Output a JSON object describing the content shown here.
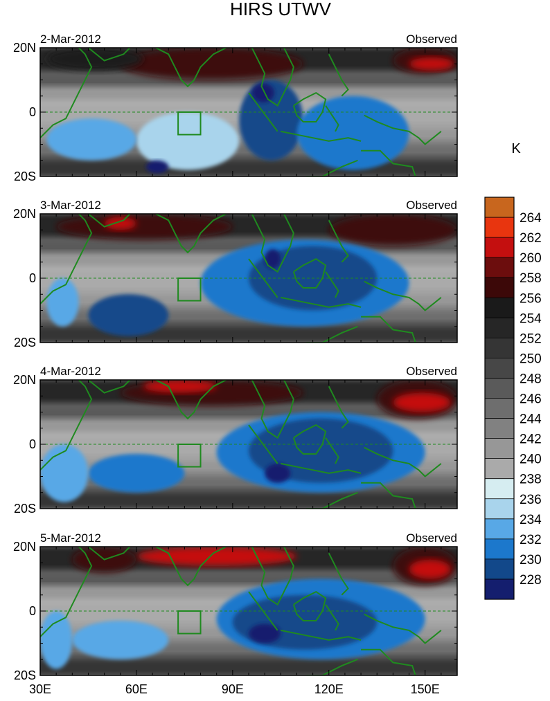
{
  "chart_data": {
    "type": "heatmap",
    "title": "HIRS UTWV",
    "units": "K",
    "x_range": [
      30,
      160
    ],
    "y_range": [
      -20,
      20
    ],
    "x_ticks": [
      {
        "value": 30,
        "label": "30E"
      },
      {
        "value": 60,
        "label": "60E"
      },
      {
        "value": 90,
        "label": "90E"
      },
      {
        "value": 120,
        "label": "120E"
      },
      {
        "value": 150,
        "label": "150E"
      }
    ],
    "y_ticks": [
      {
        "value": 20,
        "label": "20N"
      },
      {
        "value": 0,
        "label": "0"
      },
      {
        "value": -20,
        "label": "20S"
      }
    ],
    "colorbar": {
      "levels": [
        "228",
        "230",
        "232",
        "234",
        "236",
        "238",
        "240",
        "242",
        "244",
        "246",
        "248",
        "250",
        "252",
        "254",
        "256",
        "258",
        "260",
        "262",
        "264"
      ],
      "colors": [
        "#141e6e",
        "#12488a",
        "#1c78cc",
        "#58a8e6",
        "#a9d4ec",
        "#d6edf1",
        "#aaaaaa",
        "#979797",
        "#818181",
        "#6e6e6e",
        "#5a5a5a",
        "#474747",
        "#353535",
        "#262626",
        "#1a1a1a",
        "#3c0808",
        "#6c0d0d",
        "#c40f0f",
        "#e8350f",
        "#c8661e"
      ]
    },
    "box_region": {
      "lon": [
        73,
        80
      ],
      "lat": [
        -7,
        0
      ]
    },
    "panels": [
      {
        "date": "2-Mar-2012",
        "label": "Observed",
        "dry_regions": [
          {
            "lon": [
              55,
              112
            ],
            "lat": [
              10,
              20
            ],
            "level": 258
          },
          {
            "lon": [
              32,
              62
            ],
            "lat": [
              13,
              20
            ],
            "level": 256
          },
          {
            "lon": [
              140,
              160
            ],
            "lat": [
              12,
              20
            ],
            "level": 258
          },
          {
            "lon": [
              145,
              159
            ],
            "lat": [
              13,
              17
            ],
            "level": 262
          }
        ],
        "moist_regions": [
          {
            "lon": [
              60,
              92
            ],
            "lat": [
              -18,
              0
            ],
            "level": 236
          },
          {
            "lon": [
              92,
              112
            ],
            "lat": [
              -15,
              10
            ],
            "level": 230
          },
          {
            "lon": [
              96,
              103
            ],
            "lat": [
              3,
              9
            ],
            "level": 228
          },
          {
            "lon": [
              110,
              145
            ],
            "lat": [
              -18,
              5
            ],
            "level": 232
          },
          {
            "lon": [
              32,
              60
            ],
            "lat": [
              -15,
              -2
            ],
            "level": 234
          },
          {
            "lon": [
              63,
              70
            ],
            "lat": [
              -19,
              -15
            ],
            "level": 228
          }
        ]
      },
      {
        "date": "3-Mar-2012",
        "label": "Observed",
        "dry_regions": [
          {
            "lon": [
              35,
              90
            ],
            "lat": [
              12,
              20
            ],
            "level": 258
          },
          {
            "lon": [
              50,
              60
            ],
            "lat": [
              15,
              19
            ],
            "level": 262
          },
          {
            "lon": [
              120,
              160
            ],
            "lat": [
              10,
              20
            ],
            "level": 258
          }
        ],
        "moist_regions": [
          {
            "lon": [
              80,
              145
            ],
            "lat": [
              -15,
              12
            ],
            "level": 232
          },
          {
            "lon": [
              95,
              135
            ],
            "lat": [
              -10,
              10
            ],
            "level": 230
          },
          {
            "lon": [
              45,
              70
            ],
            "lat": [
              -18,
              -5
            ],
            "level": 230
          },
          {
            "lon": [
              100,
              105
            ],
            "lat": [
              3,
              9
            ],
            "level": 228
          },
          {
            "lon": [
              32,
              42
            ],
            "lat": [
              -15,
              0
            ],
            "level": 234
          }
        ]
      },
      {
        "date": "4-Mar-2012",
        "label": "Observed",
        "dry_regions": [
          {
            "lon": [
              55,
              112
            ],
            "lat": [
              12,
              20
            ],
            "level": 258
          },
          {
            "lon": [
              62,
              85
            ],
            "lat": [
              16,
              20
            ],
            "level": 262
          },
          {
            "lon": [
              135,
              160
            ],
            "lat": [
              8,
              20
            ],
            "level": 258
          },
          {
            "lon": [
              140,
              158
            ],
            "lat": [
              10,
              16
            ],
            "level": 262
          }
        ],
        "moist_regions": [
          {
            "lon": [
              85,
              150
            ],
            "lat": [
              -15,
              10
            ],
            "level": 232
          },
          {
            "lon": [
              95,
              140
            ],
            "lat": [
              -12,
              8
            ],
            "level": 230
          },
          {
            "lon": [
              45,
              75
            ],
            "lat": [
              -15,
              -3
            ],
            "level": 232
          },
          {
            "lon": [
              30,
              45
            ],
            "lat": [
              -18,
              0
            ],
            "level": 234
          },
          {
            "lon": [
              100,
              108
            ],
            "lat": [
              -12,
              -6
            ],
            "level": 228
          }
        ]
      },
      {
        "date": "5-Mar-2012",
        "label": "Observed",
        "dry_regions": [
          {
            "lon": [
              60,
              110
            ],
            "lat": [
              14,
              20
            ],
            "level": 262
          },
          {
            "lon": [
              40,
              60
            ],
            "lat": [
              12,
              20
            ],
            "level": 258
          },
          {
            "lon": [
              140,
              160
            ],
            "lat": [
              8,
              20
            ],
            "level": 258
          },
          {
            "lon": [
              145,
              158
            ],
            "lat": [
              10,
              16
            ],
            "level": 262
          }
        ],
        "moist_regions": [
          {
            "lon": [
              85,
              150
            ],
            "lat": [
              -15,
              10
            ],
            "level": 232
          },
          {
            "lon": [
              90,
              135
            ],
            "lat": [
              -12,
              5
            ],
            "level": 230
          },
          {
            "lon": [
              95,
              105
            ],
            "lat": [
              -10,
              -4
            ],
            "level": 228
          },
          {
            "lon": [
              40,
              70
            ],
            "lat": [
              -15,
              -3
            ],
            "level": 234
          },
          {
            "lon": [
              30,
              40
            ],
            "lat": [
              -18,
              0
            ],
            "level": 234
          }
        ]
      }
    ]
  }
}
